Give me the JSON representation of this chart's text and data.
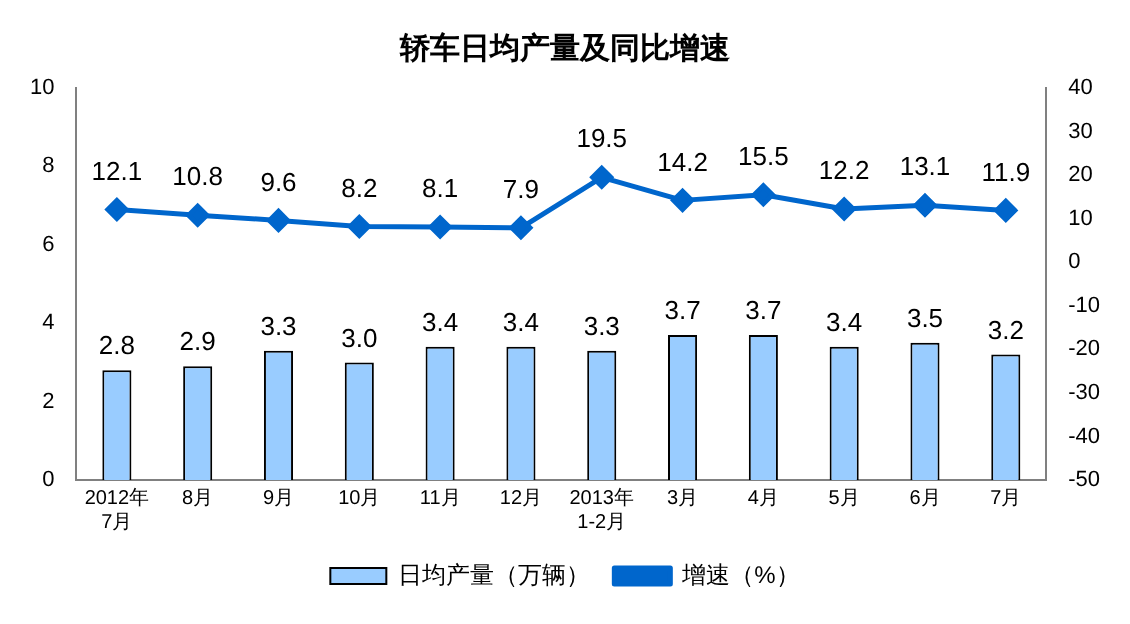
{
  "chart_data": {
    "type": "bar",
    "title": "轿车日均产量及同比增速",
    "categories": [
      "2012年\n7月",
      "8月",
      "9月",
      "10月",
      "11月",
      "12月",
      "2013年\n1-2月",
      "3月",
      "4月",
      "5月",
      "6月",
      "7月"
    ],
    "series": [
      {
        "name": "日均产量（万辆）",
        "color": "#99ccff",
        "values": [
          2.8,
          2.9,
          3.3,
          3.0,
          3.4,
          3.4,
          3.3,
          3.7,
          3.7,
          3.4,
          3.5,
          3.2
        ],
        "value_labels": [
          "2.8",
          "2.9",
          "3.3",
          "3.0",
          "3.4",
          "3.4",
          "3.3",
          "3.7",
          "3.7",
          "3.4",
          "3.5",
          "3.2"
        ]
      },
      {
        "name": "增速（%）",
        "type": "line",
        "axis": "y2",
        "color": "#0066cc",
        "marker": "diamond",
        "values": [
          12.1,
          10.8,
          9.6,
          8.2,
          8.1,
          7.9,
          19.5,
          14.2,
          15.5,
          12.2,
          13.1,
          11.9
        ]
      }
    ],
    "ylim": [
      0,
      10
    ],
    "yticks": [
      0,
      2,
      4,
      6,
      8,
      10
    ],
    "y2lim": [
      -50,
      40
    ],
    "y2ticks": [
      -50,
      -40,
      -30,
      -20,
      -10,
      0,
      10,
      20,
      30,
      40
    ],
    "data_labels": true,
    "grid": false,
    "legend": "bottom"
  }
}
